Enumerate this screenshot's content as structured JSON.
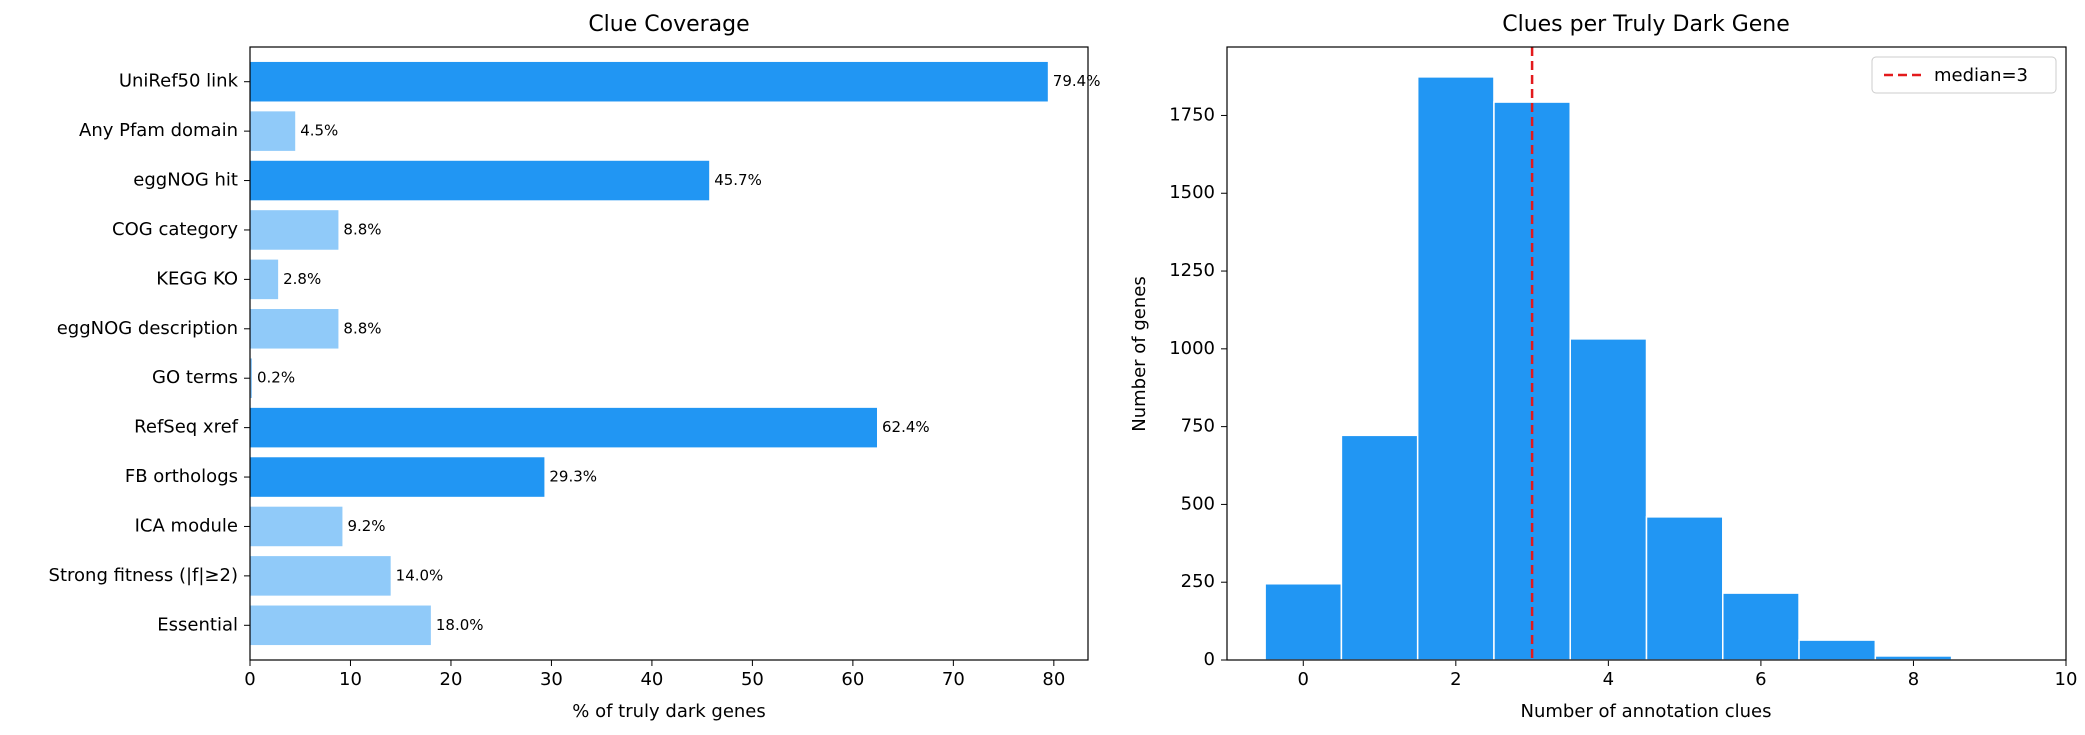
{
  "chart_data": [
    {
      "type": "hbar",
      "title": "Clue Coverage",
      "xlabel": "% of truly dark genes",
      "categories": [
        "UniRef50 link",
        "Any Pfam domain",
        "eggNOG hit",
        "COG category",
        "KEGG KO",
        "eggNOG description",
        "GO terms",
        "RefSeq xref",
        "FB orthologs",
        "ICA module",
        "Strong fitness (|f|≥2)",
        "Essential"
      ],
      "values": [
        79.4,
        4.5,
        45.7,
        8.8,
        2.8,
        8.8,
        0.2,
        62.4,
        29.3,
        9.2,
        14.0,
        18.0
      ],
      "value_labels": [
        "79.4%",
        "4.5%",
        "45.7%",
        "8.8%",
        "2.8%",
        "8.8%",
        "0.2%",
        "62.4%",
        "29.3%",
        "9.2%",
        "14.0%",
        "18.0%"
      ],
      "colors": [
        "#2196f3",
        "#90caf9",
        "#2196f3",
        "#90caf9",
        "#90caf9",
        "#90caf9",
        "#90caf9",
        "#2196f3",
        "#2196f3",
        "#90caf9",
        "#90caf9",
        "#90caf9"
      ],
      "xlim": [
        0,
        83.4
      ],
      "xticks": [
        0,
        10,
        20,
        30,
        40,
        50,
        60,
        70,
        80
      ]
    },
    {
      "type": "histogram",
      "title": "Clues per Truly Dark Gene",
      "xlabel": "Number of annotation clues",
      "ylabel": "Number of genes",
      "bins": [
        -0.5,
        0.5,
        1.5,
        2.5,
        3.5,
        4.5,
        5.5,
        6.5,
        7.5,
        8.5
      ],
      "counts": [
        245,
        722,
        1874,
        1793,
        1032,
        460,
        215,
        64,
        13
      ],
      "color": "#2196f3",
      "median": 3,
      "median_color": "#e31a1c",
      "legend_label": "median=3",
      "legend": "upper right",
      "xlim": [
        -1.0,
        10
      ],
      "xticks": [
        0,
        2,
        4,
        6,
        8,
        10
      ],
      "ylim": [
        0,
        1970
      ],
      "yticks": [
        0,
        250,
        500,
        750,
        1000,
        1250,
        1500,
        1750
      ]
    }
  ]
}
